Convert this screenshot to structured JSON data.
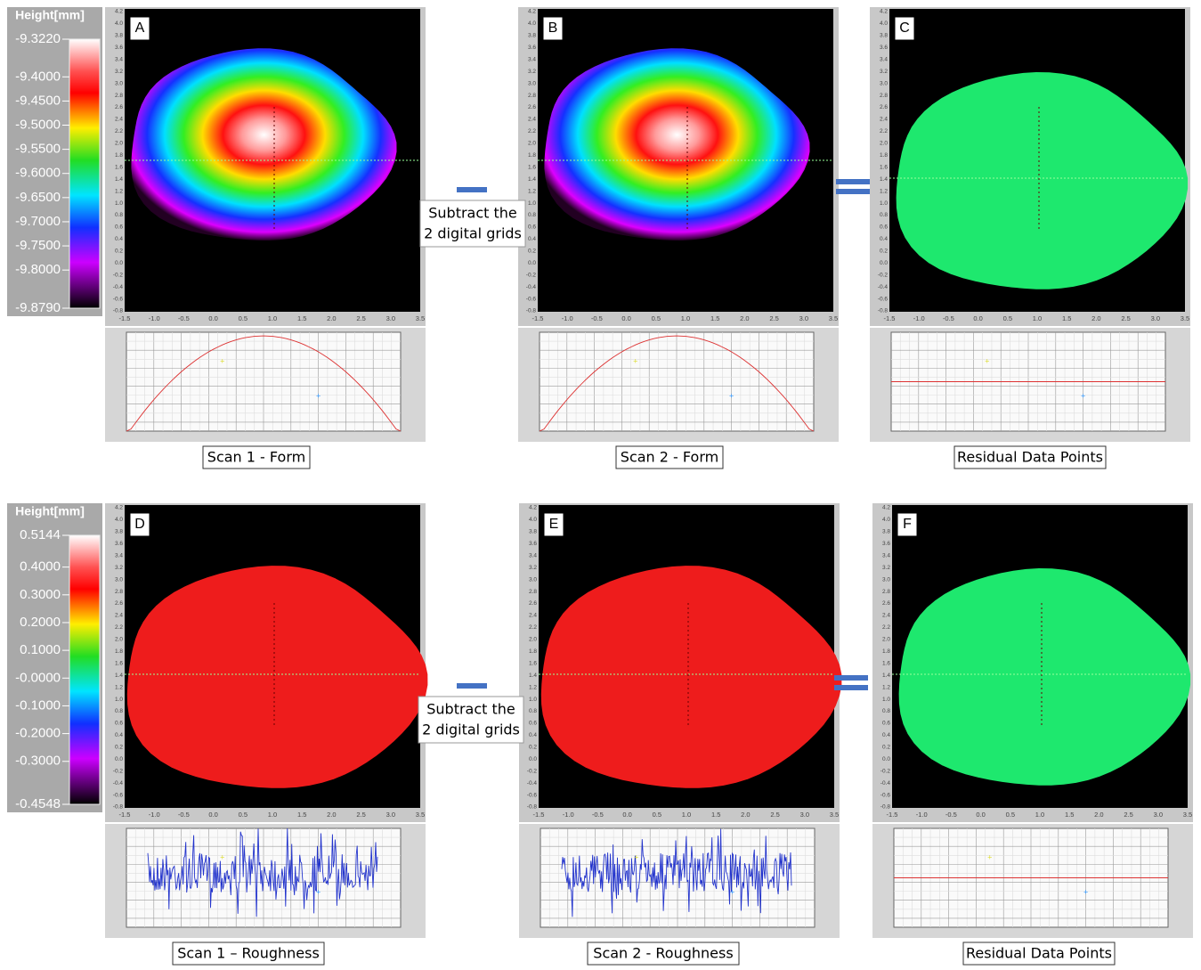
{
  "rows": [
    {
      "colorbar": {
        "title": "Height[mm]",
        "labels": [
          "-9.3220",
          "-9.4000",
          "-9.4500",
          "-9.5000",
          "-9.5500",
          "-9.6000",
          "-9.6500",
          "-9.7000",
          "-9.7500",
          "-9.8000",
          "-9.8790"
        ]
      },
      "panels": [
        {
          "letter": "A",
          "caption": "Scan 1 - Form"
        },
        {
          "letter": "B",
          "caption": "Scan 2 - Form"
        },
        {
          "letter": "C",
          "caption": "Residual Data Points"
        }
      ],
      "operator": {
        "lines": [
          "Subtract the",
          "2 digital grids"
        ]
      }
    },
    {
      "colorbar": {
        "title": "Height[mm]",
        "labels": [
          "0.5144",
          "0.4000",
          "0.3000",
          "0.2000",
          "0.1000",
          "-0.0000",
          "-0.1000",
          "-0.2000",
          "-0.3000",
          "-0.4548"
        ]
      },
      "panels": [
        {
          "letter": "D",
          "caption": "Scan 1 – Roughness"
        },
        {
          "letter": "E",
          "caption": "Scan 2 - Roughness"
        },
        {
          "letter": "F",
          "caption": "Residual Data Points"
        }
      ],
      "operator": {
        "lines": [
          "Subtract the",
          "2 digital grids"
        ]
      }
    }
  ],
  "axes": {
    "xticks": [
      "-1.5",
      "-1.0",
      "-0.5",
      "0.0",
      "0.5",
      "1.0",
      "1.5",
      "2.0",
      "2.5",
      "3.0",
      "3.5"
    ],
    "yticks": [
      "4.2",
      "4.0",
      "3.8",
      "3.6",
      "3.4",
      "3.2",
      "3.0",
      "2.8",
      "2.6",
      "2.4",
      "2.2",
      "2.0",
      "1.8",
      "1.6",
      "1.4",
      "1.2",
      "1.0",
      "0.8",
      "0.6",
      "0.4",
      "0.2",
      "0.0",
      "-0.2",
      "-0.4",
      "-0.6",
      "-0.8"
    ]
  }
}
